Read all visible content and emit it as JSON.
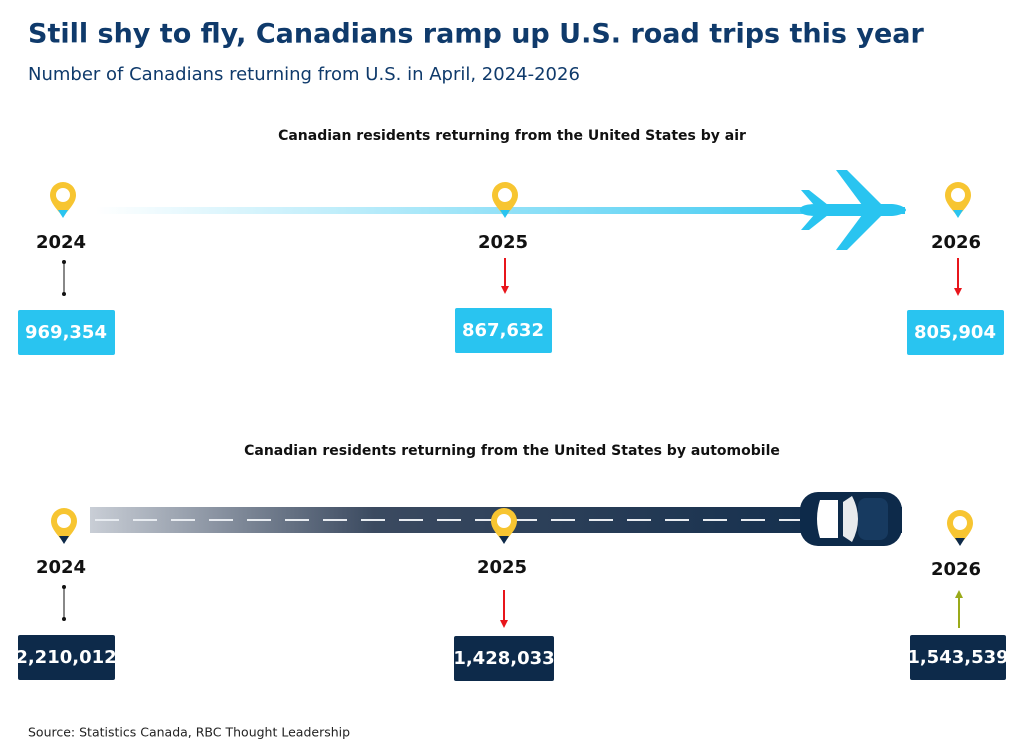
{
  "header": {
    "title": "Still shy to fly, Canadians ramp up U.S. road trips this year",
    "subtitle": "Number of Canadians returning from U.S. in April, 2024-2026"
  },
  "sections": [
    {
      "title": "Canadian residents returning from the United States by air",
      "items": [
        {
          "year": "2024",
          "value": "969,354"
        },
        {
          "year": "2025",
          "value": "867,632"
        },
        {
          "year": "2026",
          "value": "805,904"
        }
      ]
    },
    {
      "title": "Canadian residents returning from the United States by automobile",
      "items": [
        {
          "year": "2024",
          "value": "2,210,012"
        },
        {
          "year": "2025",
          "value": "1,428,033"
        },
        {
          "year": "2026",
          "value": "1,543,539"
        }
      ]
    }
  ],
  "source": "Source: Statistics Canada, RBC Thought Leadership"
}
